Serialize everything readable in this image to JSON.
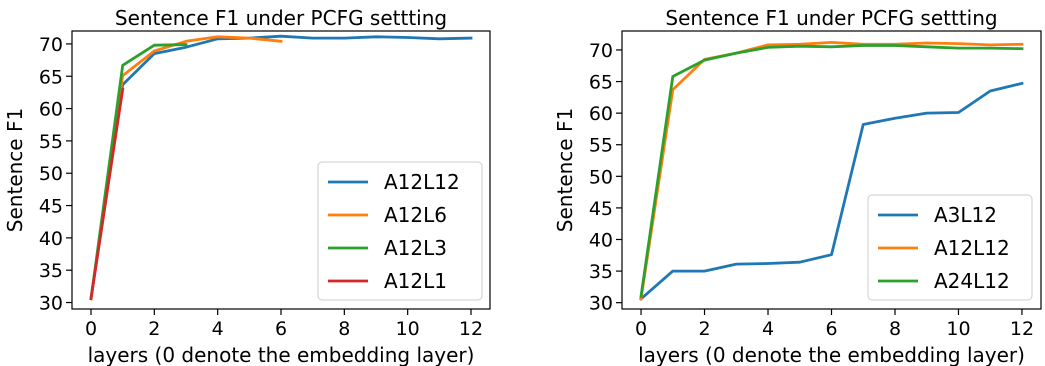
{
  "figure": {
    "background": "#ffffff"
  },
  "chart_data": [
    {
      "type": "line",
      "title": "Sentence F1 under PCFG settting",
      "xlabel": "layers (0 denote the embedding layer)",
      "ylabel": "Sentence F1",
      "xlim": [
        -0.6,
        12.6
      ],
      "ylim": [
        29.0,
        72.0
      ],
      "xticks": [
        0,
        2,
        4,
        6,
        8,
        10,
        12
      ],
      "yticks": [
        30,
        35,
        40,
        45,
        50,
        55,
        60,
        65,
        70
      ],
      "grid": false,
      "legend_position": "lower-right",
      "series": [
        {
          "name": "A12L12",
          "color": "#1f77b4",
          "x": [
            0,
            1,
            2,
            3,
            4,
            5,
            6,
            7,
            8,
            9,
            10,
            11,
            12
          ],
          "y": [
            30.6,
            63.7,
            68.5,
            69.5,
            70.8,
            70.9,
            71.2,
            70.9,
            70.9,
            71.1,
            71.0,
            70.8,
            70.9
          ]
        },
        {
          "name": "A12L6",
          "color": "#ff7f0e",
          "x": [
            0,
            1,
            2,
            3,
            4,
            5,
            6
          ],
          "y": [
            30.6,
            65.1,
            68.9,
            70.4,
            71.1,
            70.9,
            70.4
          ]
        },
        {
          "name": "A12L3",
          "color": "#2ca02c",
          "x": [
            0,
            1,
            2,
            3
          ],
          "y": [
            30.6,
            66.7,
            69.8,
            69.9
          ]
        },
        {
          "name": "A12L1",
          "color": "#d62728",
          "x": [
            0,
            1
          ],
          "y": [
            30.6,
            63.0
          ]
        }
      ]
    },
    {
      "type": "line",
      "title": "Sentence F1 under PCFG settting",
      "xlabel": "layers (0 denote the embedding layer)",
      "ylabel": "Sentence F1",
      "xlim": [
        -0.6,
        12.6
      ],
      "ylim": [
        29.0,
        73.0
      ],
      "xticks": [
        0,
        2,
        4,
        6,
        8,
        10,
        12
      ],
      "yticks": [
        30,
        35,
        40,
        45,
        50,
        55,
        60,
        65,
        70
      ],
      "grid": false,
      "legend_position": "lower-right",
      "series": [
        {
          "name": "A3L12",
          "color": "#1f77b4",
          "x": [
            0,
            1,
            2,
            3,
            4,
            5,
            6,
            7,
            8,
            9,
            10,
            11,
            12
          ],
          "y": [
            30.6,
            35.0,
            35.0,
            36.1,
            36.2,
            36.4,
            37.6,
            58.2,
            59.2,
            60.0,
            60.1,
            63.5,
            64.7
          ]
        },
        {
          "name": "A12L12",
          "color": "#ff7f0e",
          "x": [
            0,
            1,
            2,
            3,
            4,
            5,
            6,
            7,
            8,
            9,
            10,
            11,
            12
          ],
          "y": [
            30.6,
            63.7,
            68.5,
            69.5,
            70.8,
            70.9,
            71.2,
            70.9,
            70.9,
            71.1,
            71.0,
            70.8,
            70.9
          ]
        },
        {
          "name": "A24L12",
          "color": "#2ca02c",
          "x": [
            0,
            1,
            2,
            3,
            4,
            5,
            6,
            7,
            8,
            9,
            10,
            11,
            12
          ],
          "y": [
            31.0,
            65.8,
            68.4,
            69.5,
            70.4,
            70.6,
            70.5,
            70.7,
            70.7,
            70.5,
            70.3,
            70.3,
            70.2
          ]
        }
      ]
    }
  ]
}
